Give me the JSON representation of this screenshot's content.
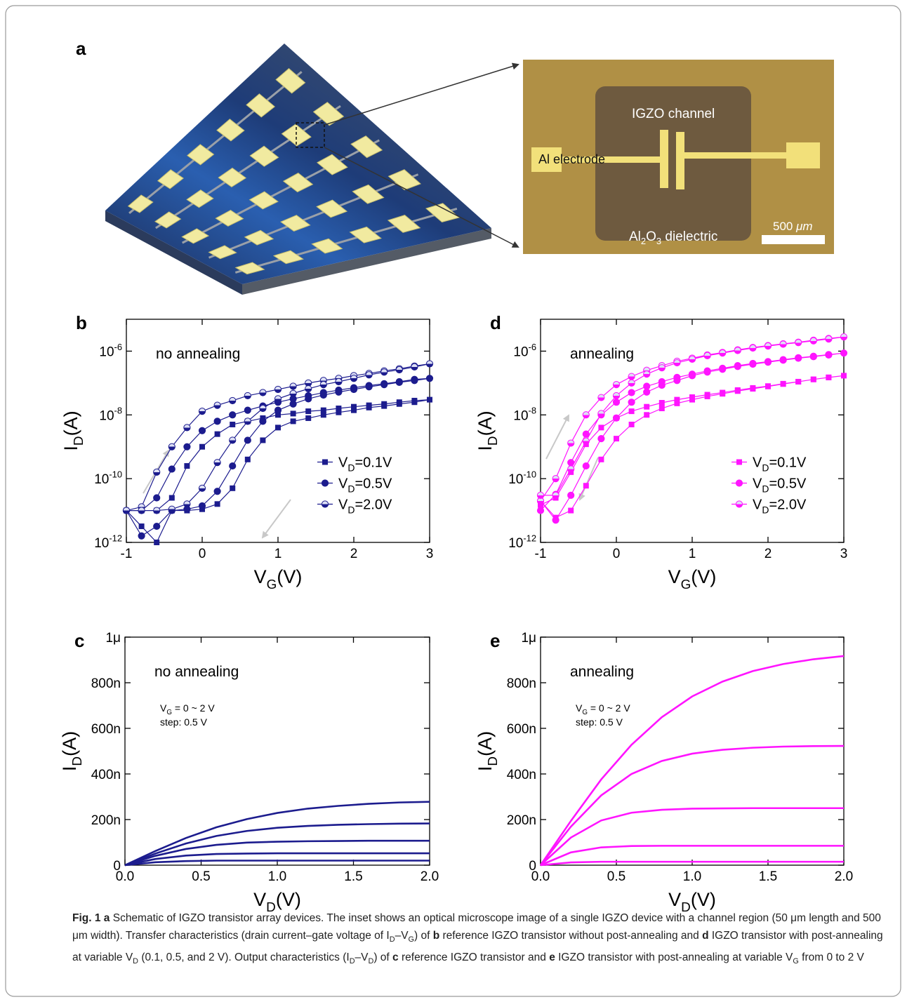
{
  "panel_a": {
    "label": "a",
    "channel": "IGZO channel",
    "electrode": "Al electrode",
    "dielectric": [
      "Al",
      "2",
      "O",
      "3",
      " dielectric"
    ],
    "scale_bar": [
      "500 ",
      "μm"
    ]
  },
  "chart_data": [
    {
      "type": "line",
      "panel": "b",
      "annotation": "no annealing",
      "xlabel": "VG(V)",
      "ylabel": "ID(A)",
      "log_y": true,
      "legend": "right",
      "xlim": [
        -1,
        3
      ],
      "xticks": [
        -1,
        0,
        1,
        2,
        3
      ],
      "ylim": [
        1e-12,
        1e-05
      ],
      "yticks": [
        {
          "value": 1e-12,
          "label": "10-12"
        },
        {
          "value": 1e-10,
          "label": "10-10"
        },
        {
          "value": 1e-08,
          "label": "10-8"
        },
        {
          "value": 1e-06,
          "label": "10-6"
        }
      ],
      "x": [
        -1,
        -0.8,
        -0.6,
        -0.4,
        -0.2,
        0,
        0.2,
        0.4,
        0.6,
        0.8,
        1,
        1.2,
        1.4,
        1.6,
        1.8,
        2,
        2.2,
        2.4,
        2.6,
        2.8,
        3,
        2.8,
        2.6,
        2.4,
        2.2,
        2,
        1.8,
        1.6,
        1.4,
        1.2,
        1,
        0.8,
        0.6,
        0.4,
        0.2,
        0,
        -0.2,
        -0.4,
        -0.6,
        -0.8,
        -1
      ],
      "series": [
        {
          "name": "VD=0.1V",
          "color": "#1c1c8e",
          "marker": "square",
          "values": [
            1e-11,
            1e-11,
            1e-11,
            2.5e-11,
            2.5e-10,
            1e-09,
            2.5e-09,
            5e-09,
            6.3e-09,
            7.9e-09,
            1e-08,
            1.1e-08,
            1.3e-08,
            1.4e-08,
            1.6e-08,
            1.8e-08,
            2e-08,
            2.2e-08,
            2.5e-08,
            2.8e-08,
            3e-08,
            2.5e-08,
            2.2e-08,
            1.9e-08,
            1.7e-08,
            1.4e-08,
            1.2e-08,
            1e-08,
            7.9e-09,
            6.3e-09,
            4e-09,
            1.6e-09,
            4e-10,
            5e-11,
            1.6e-11,
            1.1e-11,
            1e-11,
            1e-11,
            1e-12,
            3.2e-12,
            1e-11
          ]
        },
        {
          "name": "VD=0.5V",
          "color": "#1c1c8e",
          "marker": "circle",
          "values": [
            1e-11,
            1e-11,
            2.5e-11,
            2e-10,
            1e-09,
            3.2e-09,
            6.3e-09,
            1e-08,
            1.4e-08,
            1.9e-08,
            2.5e-08,
            3.2e-08,
            4e-08,
            5e-08,
            6e-08,
            7.1e-08,
            8.3e-08,
            9.5e-08,
            1.1e-07,
            1.3e-07,
            1.4e-07,
            1.2e-07,
            1.05e-07,
            8.9e-08,
            7.6e-08,
            6.3e-08,
            5.2e-08,
            4.2e-08,
            3.2e-08,
            2.2e-08,
            1.4e-08,
            6.3e-09,
            1.6e-09,
            2.5e-10,
            4e-11,
            1.4e-11,
            1.1e-11,
            1e-11,
            3.2e-12,
            1.6e-12,
            1e-11
          ]
        },
        {
          "name": "VD=2.0V",
          "color": "#1c1c8e",
          "marker": "half-circle",
          "values": [
            1e-11,
            1.3e-11,
            1.6e-10,
            1e-09,
            4e-09,
            1.3e-08,
            2e-08,
            2.8e-08,
            4e-08,
            5e-08,
            6.3e-08,
            7.9e-08,
            1e-07,
            1.2e-07,
            1.4e-07,
            1.7e-07,
            2e-07,
            2.4e-07,
            2.8e-07,
            3.4e-07,
            4e-07,
            3.2e-07,
            2.6e-07,
            2.2e-07,
            1.8e-07,
            1.4e-07,
            1.1e-07,
            8.9e-08,
            6.6e-08,
            4.7e-08,
            3.2e-08,
            1.6e-08,
            6.3e-09,
            1.6e-09,
            3.2e-10,
            5e-11,
            1.6e-11,
            1.1e-11,
            1e-11,
            1e-11,
            1e-11
          ]
        }
      ]
    },
    {
      "type": "line",
      "panel": "d",
      "annotation": "annealing",
      "xlabel": "VG(V)",
      "ylabel": "ID(A)",
      "log_y": true,
      "legend": "right",
      "xlim": [
        -1,
        3
      ],
      "xticks": [
        -1,
        0,
        1,
        2,
        3
      ],
      "ylim": [
        1e-12,
        1e-05
      ],
      "yticks": [
        {
          "value": 1e-12,
          "label": "10-12"
        },
        {
          "value": 1e-10,
          "label": "10-10"
        },
        {
          "value": 1e-08,
          "label": "10-8"
        },
        {
          "value": 1e-06,
          "label": "10-6"
        }
      ],
      "x": [
        -1,
        -0.8,
        -0.6,
        -0.4,
        -0.2,
        0,
        0.2,
        0.4,
        0.6,
        0.8,
        1,
        1.2,
        1.4,
        1.6,
        1.8,
        2,
        2.2,
        2.4,
        2.6,
        2.8,
        3,
        2.8,
        2.6,
        2.4,
        2.2,
        2,
        1.8,
        1.6,
        1.4,
        1.2,
        1,
        0.8,
        0.6,
        0.4,
        0.2,
        0,
        -0.2,
        -0.4,
        -0.6,
        -0.8,
        -1
      ],
      "series": [
        {
          "name": "VD=0.1V",
          "color": "#ff14ff",
          "marker": "square",
          "values": [
            1.5e-11,
            2.5e-11,
            1.6e-10,
            1.2e-09,
            4e-09,
            8e-09,
            1.3e-08,
            1.8e-08,
            2.4e-08,
            3e-08,
            3.6e-08,
            4.3e-08,
            5e-08,
            6e-08,
            7e-08,
            8e-08,
            9.5e-08,
            1.1e-07,
            1.3e-07,
            1.5e-07,
            1.7e-07,
            1.5e-07,
            1.3e-07,
            1.1e-07,
            9.3e-08,
            7.8e-08,
            6.6e-08,
            5.6e-08,
            4.6e-08,
            3.8e-08,
            3e-08,
            2.3e-08,
            1.6e-08,
            1e-08,
            5e-09,
            1.8e-09,
            4e-10,
            6e-11,
            1e-11,
            6e-12,
            2e-11
          ]
        },
        {
          "name": "VD=0.5V",
          "color": "#ff14ff",
          "marker": "circle",
          "values": [
            1e-11,
            3.2e-11,
            3.2e-10,
            2.5e-09,
            1e-08,
            2.5e-08,
            5e-08,
            7.9e-08,
            1.1e-07,
            1.5e-07,
            1.9e-07,
            2.4e-07,
            2.9e-07,
            3.5e-07,
            4.1e-07,
            4.7e-07,
            5.4e-07,
            6.2e-07,
            6.9e-07,
            7.8e-07,
            8.7e-07,
            7.6e-07,
            6.7e-07,
            6e-07,
            5.2e-07,
            4.5e-07,
            3.9e-07,
            3.3e-07,
            2.7e-07,
            2.2e-07,
            1.7e-07,
            1.2e-07,
            8.5e-08,
            5.2e-08,
            2.5e-08,
            8e-09,
            1.8e-09,
            2.5e-10,
            3e-11,
            5e-12,
            2e-11
          ]
        },
        {
          "name": "VD=2.0V",
          "color": "#ff14ff",
          "marker": "half-circle",
          "values": [
            2e-11,
            1e-10,
            1.3e-09,
            1e-08,
            3.5e-08,
            8.9e-08,
            1.6e-07,
            2.5e-07,
            3.5e-07,
            4.8e-07,
            6e-07,
            7.6e-07,
            9.1e-07,
            1.1e-06,
            1.3e-06,
            1.5e-06,
            1.7e-06,
            1.9e-06,
            2.2e-06,
            2.5e-06,
            2.8e-06,
            2.4e-06,
            2.1e-06,
            1.85e-06,
            1.65e-06,
            1.45e-06,
            1.25e-06,
            1.05e-06,
            8.7e-07,
            7.2e-07,
            5.6e-07,
            4.3e-07,
            3e-07,
            1.9e-07,
            1e-07,
            4e-08,
            1.1e-08,
            1.5e-09,
            2e-10,
            3e-11,
            3e-11
          ]
        }
      ]
    },
    {
      "type": "line",
      "panel": "c",
      "annotation": "no annealing",
      "notes": [
        "VG = 0 ~ 2 V",
        "step: 0.5 V"
      ],
      "xlabel": "VD(V)",
      "ylabel": "ID(A)",
      "xlim": [
        0,
        2
      ],
      "xticks": [
        {
          "value": 0,
          "label": "0.0"
        },
        0.5,
        {
          "value": 1,
          "label": "1.0"
        },
        1.5,
        {
          "value": 2,
          "label": "2.0"
        }
      ],
      "ylim": [
        0,
        1e-06
      ],
      "yticks": [
        0,
        {
          "value": 2e-07,
          "label": "200n"
        },
        {
          "value": 4e-07,
          "label": "400n"
        },
        {
          "value": 6e-07,
          "label": "600n"
        },
        {
          "value": 8e-07,
          "label": "800n"
        },
        {
          "value": 1e-06,
          "label": "1μ"
        }
      ],
      "x": [
        0,
        0.2,
        0.4,
        0.6,
        0.8,
        1,
        1.2,
        1.4,
        1.6,
        1.8,
        2
      ],
      "series": [
        {
          "color": "#1c1c8e",
          "values": [
            0,
            1.3e-08,
            1.8e-08,
            2e-08,
            2e-08,
            2e-08,
            2e-08,
            2e-08,
            2e-08,
            2e-08,
            2e-08
          ]
        },
        {
          "color": "#1c1c8e",
          "values": [
            0,
            2.7e-08,
            4.2e-08,
            4.9e-08,
            5.1e-08,
            5.2e-08,
            5.2e-08,
            5.2e-08,
            5.2e-08,
            5.2e-08,
            5.2e-08
          ]
        },
        {
          "color": "#1c1c8e",
          "values": [
            0,
            4.1e-08,
            7.1e-08,
            8.9e-08,
            9.9e-08,
            1.03e-07,
            1.05e-07,
            1.06e-07,
            1.07e-07,
            1.07e-07,
            1.07e-07
          ]
        },
        {
          "color": "#1c1c8e",
          "values": [
            0,
            5.1e-08,
            9.5e-08,
            1.28e-07,
            1.5e-07,
            1.64e-07,
            1.72e-07,
            1.77e-07,
            1.8e-07,
            1.82e-07,
            1.83e-07
          ]
        },
        {
          "color": "#1c1c8e",
          "values": [
            0,
            6.2e-08,
            1.19e-07,
            1.66e-07,
            2.02e-07,
            2.29e-07,
            2.48e-07,
            2.6e-07,
            2.69e-07,
            2.75e-07,
            2.78e-07
          ]
        }
      ]
    },
    {
      "type": "line",
      "panel": "e",
      "annotation": "annealing",
      "notes": [
        "VG = 0 ~ 2 V",
        "step: 0.5 V"
      ],
      "xlabel": "VD(V)",
      "ylabel": "ID(A)",
      "xlim": [
        0,
        2
      ],
      "xticks": [
        {
          "value": 0,
          "label": "0.0"
        },
        0.5,
        {
          "value": 1,
          "label": "1.0"
        },
        1.5,
        {
          "value": 2,
          "label": "2.0"
        }
      ],
      "ylim": [
        0,
        1e-06
      ],
      "yticks": [
        0,
        {
          "value": 2e-07,
          "label": "200n"
        },
        {
          "value": 4e-07,
          "label": "400n"
        },
        {
          "value": 6e-07,
          "label": "600n"
        },
        {
          "value": 8e-07,
          "label": "800n"
        },
        {
          "value": 1e-06,
          "label": "1μ"
        }
      ],
      "x": [
        0,
        0.2,
        0.4,
        0.6,
        0.8,
        1,
        1.2,
        1.4,
        1.6,
        1.8,
        2
      ],
      "series": [
        {
          "color": "#ff14ff",
          "values": [
            0,
            1.2e-08,
            1.5e-08,
            1.5e-08,
            1.5e-08,
            1.5e-08,
            1.5e-08,
            1.5e-08,
            1.5e-08,
            1.5e-08,
            1.5e-08
          ]
        },
        {
          "color": "#ff14ff",
          "values": [
            0,
            5.6e-08,
            7.8e-08,
            8.4e-08,
            8.5e-08,
            8.5e-08,
            8.5e-08,
            8.5e-08,
            8.5e-08,
            8.5e-08,
            8.5e-08
          ]
        },
        {
          "color": "#ff14ff",
          "values": [
            0,
            1.21e-07,
            1.96e-07,
            2.3e-07,
            2.43e-07,
            2.48e-07,
            2.49e-07,
            2.5e-07,
            2.5e-07,
            2.5e-07,
            2.5e-07
          ]
        },
        {
          "color": "#ff14ff",
          "values": [
            0,
            1.69e-07,
            3.06e-07,
            4e-07,
            4.57e-07,
            4.89e-07,
            5.06e-07,
            5.15e-07,
            5.2e-07,
            5.22e-07,
            5.23e-07
          ]
        },
        {
          "color": "#ff14ff",
          "values": [
            0,
            1.94e-07,
            3.76e-07,
            5.28e-07,
            6.49e-07,
            7.4e-07,
            8.05e-07,
            8.51e-07,
            8.82e-07,
            9.03e-07,
            9.17e-07
          ]
        }
      ]
    }
  ],
  "caption": [
    "Fig. 1",
    "a",
    " Schematic of IGZO transistor array devices. The inset shows an optical microscope image of a single IGZO device with a channel region (50 μm length and 500 μm width). Transfer characteristics (drain current–gate voltage of I",
    "D",
    "–V",
    "G",
    ") of ",
    "b",
    " reference IGZO transistor without post-annealing and ",
    "d",
    " IGZO transistor with post-annealing at variable V",
    "D",
    " (0.1, 0.5, and 2 V). Output characteristics (I",
    "D",
    "–V",
    "D",
    ") of ",
    "c",
    " reference IGZO transistor and ",
    "e",
    " IGZO transistor with post-annealing at variable V",
    "G",
    " from 0 to 2 V"
  ]
}
